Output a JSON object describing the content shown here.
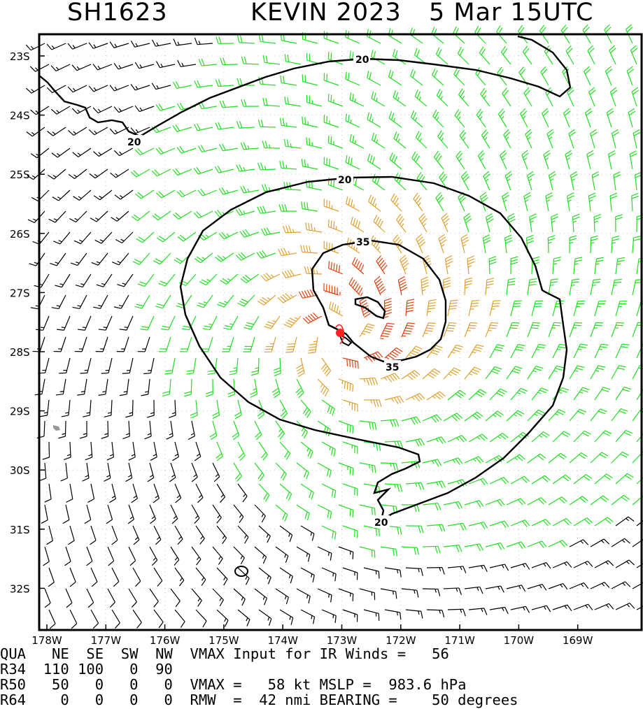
{
  "title": {
    "storm_id": "SH1623",
    "storm_name_year": "KEVIN 2023",
    "datetime": "5 Mar 15UTC"
  },
  "map": {
    "lat_labels": [
      "23S",
      "24S",
      "25S",
      "26S",
      "27S",
      "28S",
      "29S",
      "30S",
      "31S",
      "32S"
    ],
    "lon_labels": [
      "178W",
      "177W",
      "176W",
      "175W",
      "174W",
      "173W",
      "172W",
      "171W",
      "170W",
      "169W"
    ],
    "contour_labels": [
      "20",
      "20",
      "20",
      "35",
      "35",
      "20"
    ],
    "colors": {
      "below20": "#000000",
      "kt20_35": "#22dd22",
      "kt35_50": "#e0a030",
      "kt50_64": "#e04010",
      "center": "#ff2020",
      "contour": "#000000",
      "land": "#999999"
    }
  },
  "info": {
    "row1": "QUA   NE  SE  SW  NW  VMAX Input for IR Winds =   56",
    "row2": "R34  110 100   0  90",
    "row3": "R50   50   0   0   0  VMAX =   58 kt MSLP =  983.6 hPa",
    "row4": "R64    0   0   0   0  RMW  =  42 nmi BEARING =    50 degrees"
  }
}
